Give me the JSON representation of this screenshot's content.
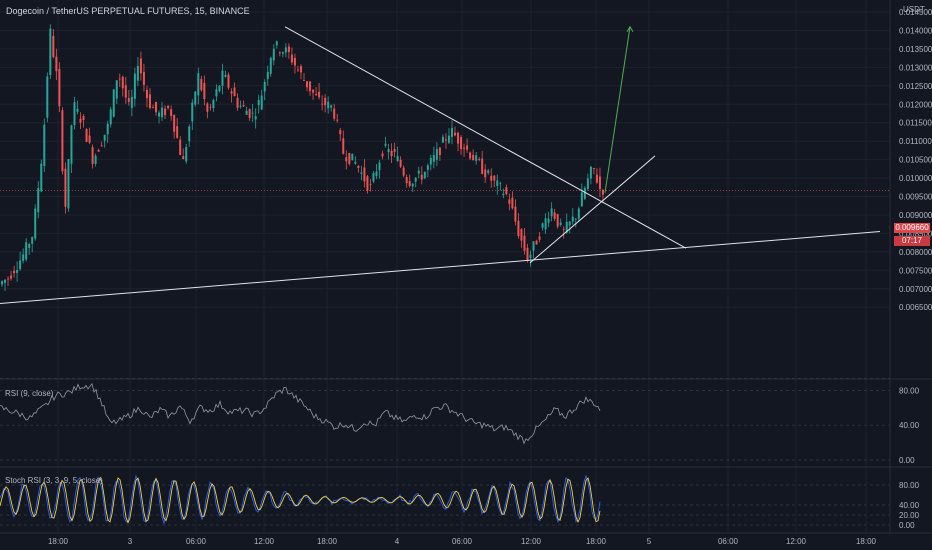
{
  "header": {
    "title": "Dogecoin / TetherUS PERPETUAL FUTURES, 15, BINANCE",
    "unit": "USDT"
  },
  "price_axis": {
    "labels": [
      "0.014500",
      "0.014000",
      "0.013500",
      "0.013000",
      "0.012500",
      "0.012000",
      "0.011500",
      "0.011000",
      "0.010500",
      "0.010000",
      "0.009500",
      "0.009000",
      "0.008500",
      "0.008000",
      "0.007500",
      "0.007000",
      "0.006500"
    ],
    "values": [
      0.0145,
      0.014,
      0.0135,
      0.013,
      0.0125,
      0.012,
      0.0115,
      0.011,
      0.0105,
      0.01,
      0.0095,
      0.009,
      0.0085,
      0.008,
      0.0075,
      0.007,
      0.0065
    ],
    "last_price": "0.009660",
    "last_price_value": 0.00966,
    "countdown": "07:17"
  },
  "time_axis": {
    "labels": [
      "18:00",
      "3",
      "06:00",
      "12:00",
      "18:00",
      "4",
      "06:00",
      "12:00",
      "18:00",
      "5",
      "06:00",
      "12:00",
      "18:00"
    ]
  },
  "rsi": {
    "label": "RSI (9, close)",
    "levels": [
      "80.00",
      "40.00",
      "0.00"
    ],
    "level_values": [
      80,
      40,
      0
    ]
  },
  "stoch": {
    "label": "Stoch RSI (3, 3, 9, 5, close)",
    "levels": [
      "80.00",
      "40.00",
      "20.00",
      "0.00"
    ],
    "level_values": [
      80,
      40,
      20,
      0
    ]
  },
  "colors": {
    "background": "#131722",
    "up": "#26a69a",
    "down": "#ef5350",
    "trendline": "#e0e3eb",
    "projection": "#4caf50",
    "rsi_line": "#9598a1",
    "stoch_k": "#2962ff",
    "stoch_d": "#f7d13d"
  },
  "chart_data": {
    "type": "candlestick",
    "xlabel": "",
    "ylabel": "USDT",
    "ylim": [
      0.006,
      0.0147
    ],
    "anchors_price": [
      [
        0,
        0.0071
      ],
      [
        10,
        0.0073
      ],
      [
        25,
        0.0079
      ],
      [
        35,
        0.0085
      ],
      [
        45,
        0.0109
      ],
      [
        52,
        0.014
      ],
      [
        60,
        0.0125
      ],
      [
        67,
        0.0091
      ],
      [
        75,
        0.012
      ],
      [
        85,
        0.0115
      ],
      [
        95,
        0.0105
      ],
      [
        110,
        0.0114
      ],
      [
        120,
        0.0129
      ],
      [
        132,
        0.0118
      ],
      [
        140,
        0.0132
      ],
      [
        150,
        0.0121
      ],
      [
        160,
        0.0117
      ],
      [
        172,
        0.0119
      ],
      [
        185,
        0.0104
      ],
      [
        200,
        0.0128
      ],
      [
        210,
        0.0117
      ],
      [
        225,
        0.0128
      ],
      [
        240,
        0.012
      ],
      [
        255,
        0.0117
      ],
      [
        262,
        0.0121
      ],
      [
        275,
        0.0136
      ],
      [
        290,
        0.0134
      ],
      [
        305,
        0.0127
      ],
      [
        320,
        0.0121
      ],
      [
        335,
        0.0119
      ],
      [
        345,
        0.0107
      ],
      [
        358,
        0.0104
      ],
      [
        372,
        0.0097
      ],
      [
        385,
        0.0108
      ],
      [
        398,
        0.0106
      ],
      [
        410,
        0.0099
      ],
      [
        425,
        0.0101
      ],
      [
        440,
        0.0107
      ],
      [
        452,
        0.0113
      ],
      [
        465,
        0.0109
      ],
      [
        480,
        0.0104
      ],
      [
        495,
        0.0099
      ],
      [
        510,
        0.0095
      ],
      [
        522,
        0.0084
      ],
      [
        530,
        0.0078
      ],
      [
        540,
        0.0084
      ],
      [
        553,
        0.0092
      ],
      [
        565,
        0.0085
      ],
      [
        578,
        0.009
      ],
      [
        588,
        0.0098
      ],
      [
        595,
        0.0103
      ],
      [
        602,
        0.0097
      ]
    ],
    "anchors_rsi": [
      [
        0,
        60
      ],
      [
        15,
        55
      ],
      [
        30,
        48
      ],
      [
        45,
        62
      ],
      [
        55,
        74
      ],
      [
        70,
        78
      ],
      [
        80,
        85
      ],
      [
        92,
        86
      ],
      [
        100,
        70
      ],
      [
        110,
        42
      ],
      [
        120,
        45
      ],
      [
        130,
        52
      ],
      [
        140,
        60
      ],
      [
        150,
        48
      ],
      [
        160,
        58
      ],
      [
        170,
        50
      ],
      [
        180,
        62
      ],
      [
        190,
        45
      ],
      [
        200,
        60
      ],
      [
        210,
        57
      ],
      [
        220,
        64
      ],
      [
        230,
        55
      ],
      [
        245,
        57
      ],
      [
        255,
        52
      ],
      [
        265,
        60
      ],
      [
        275,
        75
      ],
      [
        285,
        82
      ],
      [
        295,
        72
      ],
      [
        305,
        62
      ],
      [
        315,
        50
      ],
      [
        325,
        45
      ],
      [
        335,
        38
      ],
      [
        345,
        42
      ],
      [
        355,
        35
      ],
      [
        365,
        44
      ],
      [
        375,
        40
      ],
      [
        385,
        55
      ],
      [
        395,
        48
      ],
      [
        405,
        44
      ],
      [
        415,
        52
      ],
      [
        425,
        49
      ],
      [
        435,
        60
      ],
      [
        445,
        62
      ],
      [
        455,
        55
      ],
      [
        465,
        48
      ],
      [
        475,
        42
      ],
      [
        485,
        40
      ],
      [
        495,
        35
      ],
      [
        505,
        38
      ],
      [
        515,
        30
      ],
      [
        525,
        22
      ],
      [
        535,
        34
      ],
      [
        545,
        45
      ],
      [
        555,
        58
      ],
      [
        565,
        50
      ],
      [
        575,
        60
      ],
      [
        585,
        70
      ],
      [
        595,
        65
      ],
      [
        600,
        58
      ]
    ],
    "stoch_oscillations": 32,
    "trendlines": [
      {
        "name": "lower-support",
        "from": [
          0,
          0.0066
        ],
        "to": [
          880,
          0.00855
        ]
      },
      {
        "name": "descending-resistance",
        "from": [
          285,
          0.0141
        ],
        "to": [
          686,
          0.0081
        ]
      },
      {
        "name": "ascending-support",
        "from": [
          530,
          0.0077
        ],
        "to": [
          655,
          0.0106
        ]
      },
      {
        "name": "projection-arrow",
        "from": [
          605,
          0.0096
        ],
        "to": [
          630,
          0.0141
        ]
      }
    ]
  }
}
